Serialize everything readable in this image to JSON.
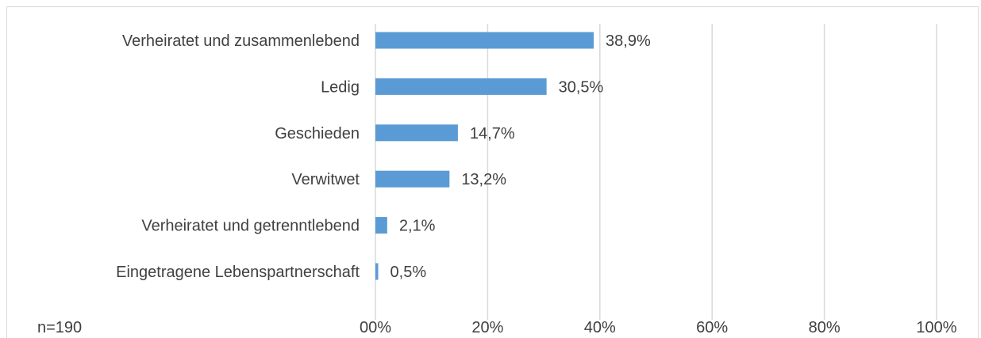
{
  "chart_data": {
    "type": "bar",
    "orientation": "horizontal",
    "categories": [
      "Verheiratet und zusammenlebend",
      "Ledig",
      "Geschieden",
      "Verwitwet",
      "Verheiratet und getrenntlebend",
      "Eingetragene Lebenspartnerschaft"
    ],
    "values": [
      38.9,
      30.5,
      14.7,
      13.2,
      2.1,
      0.5
    ],
    "value_labels": [
      "38,9%",
      "30,5%",
      "14,7%",
      "13,2%",
      "2,1%",
      "0,5%"
    ],
    "xlim": [
      0,
      100
    ],
    "x_ticks": [
      0,
      20,
      40,
      60,
      80,
      100
    ],
    "x_tick_labels": [
      "00%",
      "20%",
      "40%",
      "60%",
      "80%",
      "100%"
    ],
    "grid": true,
    "legend": "none",
    "note": "n=190",
    "bar_color": "#5b9bd5",
    "grid_color": "#d9d9d9"
  }
}
